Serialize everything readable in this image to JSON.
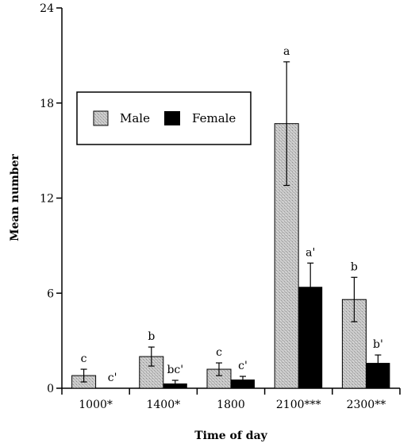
{
  "chart_data": {
    "type": "bar",
    "xlabel": "Time of day",
    "ylabel": "Mean number",
    "ylim": [
      0,
      24
    ],
    "yticks": [
      "0",
      "6",
      "12",
      "18",
      "24"
    ],
    "categories": [
      "1000*",
      "1400*",
      "1800",
      "2100***",
      "2300**"
    ],
    "series": [
      {
        "name": "Male",
        "color": "#b4b4b4",
        "pattern": "stippled-gray",
        "values": [
          0.8,
          2.0,
          1.2,
          16.7,
          5.6
        ],
        "error": [
          0.4,
          0.6,
          0.4,
          3.9,
          1.4
        ],
        "labels": [
          "c",
          "b",
          "c",
          "a",
          "b"
        ]
      },
      {
        "name": "Female",
        "color": "#000000",
        "values": [
          0.0,
          0.3,
          0.55,
          6.4,
          1.6
        ],
        "error": [
          0.0,
          0.2,
          0.2,
          1.5,
          0.5
        ],
        "labels": [
          "c'",
          "bc'",
          "c'",
          "a'",
          "b'"
        ]
      }
    ],
    "legend": {
      "placement": "upper-left",
      "items": [
        "Male",
        "Female"
      ]
    },
    "grid": false
  }
}
